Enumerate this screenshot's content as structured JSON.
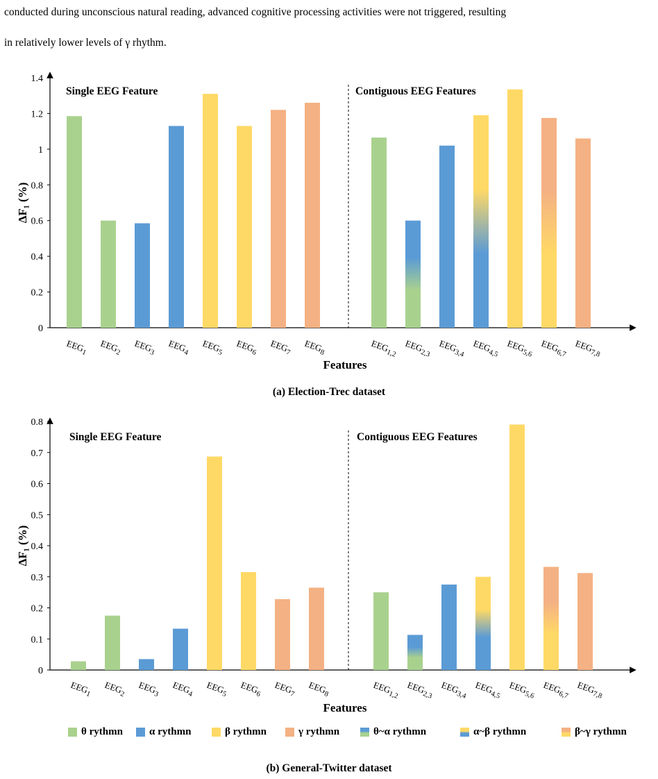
{
  "text": {
    "para1": "conducted during unconscious natural reading, advanced cognitive processing activities were not triggered, resulting",
    "para2": "in relatively lower levels of γ rhythm."
  },
  "colors": {
    "theta": "#A9D18E",
    "alpha": "#5B9BD5",
    "beta": "#FFD966",
    "gamma": "#F4B183"
  },
  "legend": [
    {
      "label": "θ rythmn",
      "colors": [
        "theta"
      ]
    },
    {
      "label": "α rythmn",
      "colors": [
        "alpha"
      ]
    },
    {
      "label": "β rythmn",
      "colors": [
        "beta"
      ]
    },
    {
      "label": "γ rythmn",
      "colors": [
        "gamma"
      ]
    },
    {
      "label": "θ~α rythmn",
      "colors": [
        "alpha",
        "theta"
      ]
    },
    {
      "label": "α~β rythmn",
      "colors": [
        "beta",
        "alpha"
      ]
    },
    {
      "label": "β~γ rythmn",
      "colors": [
        "gamma",
        "beta"
      ]
    }
  ],
  "chart_data": [
    {
      "type": "bar",
      "caption": "(a) Election-Trec dataset",
      "xlabel": "Features",
      "ylabel": "ΔF₁ (%)",
      "ylim": [
        0,
        1.4
      ],
      "yticks": [
        "0",
        "0.2",
        "0.4",
        "0.6",
        "0.8",
        "1",
        "1.2",
        "1.4"
      ],
      "section_labels": [
        "Single EEG Feature",
        "Contiguous EEG Features"
      ],
      "groups": [
        {
          "categories": [
            "EEG1",
            "EEG2",
            "EEG3",
            "EEG4",
            "EEG5",
            "EEG6",
            "EEG7",
            "EEG8"
          ],
          "values": [
            1.185,
            0.6,
            0.585,
            1.13,
            1.31,
            1.13,
            1.22,
            1.26
          ],
          "rhythms": [
            "theta",
            "theta",
            "alpha",
            "alpha",
            "beta",
            "beta",
            "gamma",
            "gamma"
          ]
        },
        {
          "categories": [
            "EEG1,2",
            "EEG2,3",
            "EEG3,4",
            "EEG4,5",
            "EEG5,6",
            "EEG6,7",
            "EEG7,8"
          ],
          "values": [
            1.065,
            0.6,
            1.02,
            1.19,
            1.335,
            1.175,
            1.06
          ],
          "rhythms": [
            "theta",
            "theta~alpha",
            "alpha",
            "alpha~beta",
            "beta",
            "beta~gamma",
            "gamma"
          ]
        }
      ]
    },
    {
      "type": "bar",
      "caption": "(b) General-Twitter dataset",
      "xlabel": "Features",
      "ylabel": "ΔF₁ (%)",
      "ylim": [
        0,
        0.8
      ],
      "yticks": [
        "0",
        "0.1",
        "0.2",
        "0.3",
        "0.4",
        "0.5",
        "0.6",
        "0.7",
        "0.8"
      ],
      "section_labels": [
        "Single EEG Feature",
        "Contiguous EEG Features"
      ],
      "groups": [
        {
          "categories": [
            "EEG1",
            "EEG2",
            "EEG3",
            "EEG4",
            "EEG5",
            "EEG6",
            "EEG7",
            "EEG8"
          ],
          "values": [
            0.028,
            0.175,
            0.035,
            0.133,
            0.687,
            0.315,
            0.228,
            0.265
          ],
          "rhythms": [
            "theta",
            "theta",
            "alpha",
            "alpha",
            "beta",
            "beta",
            "gamma",
            "gamma"
          ]
        },
        {
          "categories": [
            "EEG1,2",
            "EEG2,3",
            "EEG3,4",
            "EEG4,5",
            "EEG5,6",
            "EEG6,7",
            "EEG7,8"
          ],
          "values": [
            0.25,
            0.113,
            0.275,
            0.3,
            0.79,
            0.332,
            0.312
          ],
          "rhythms": [
            "theta",
            "theta~alpha",
            "alpha",
            "alpha~beta",
            "beta",
            "beta~gamma",
            "gamma"
          ]
        }
      ]
    }
  ]
}
